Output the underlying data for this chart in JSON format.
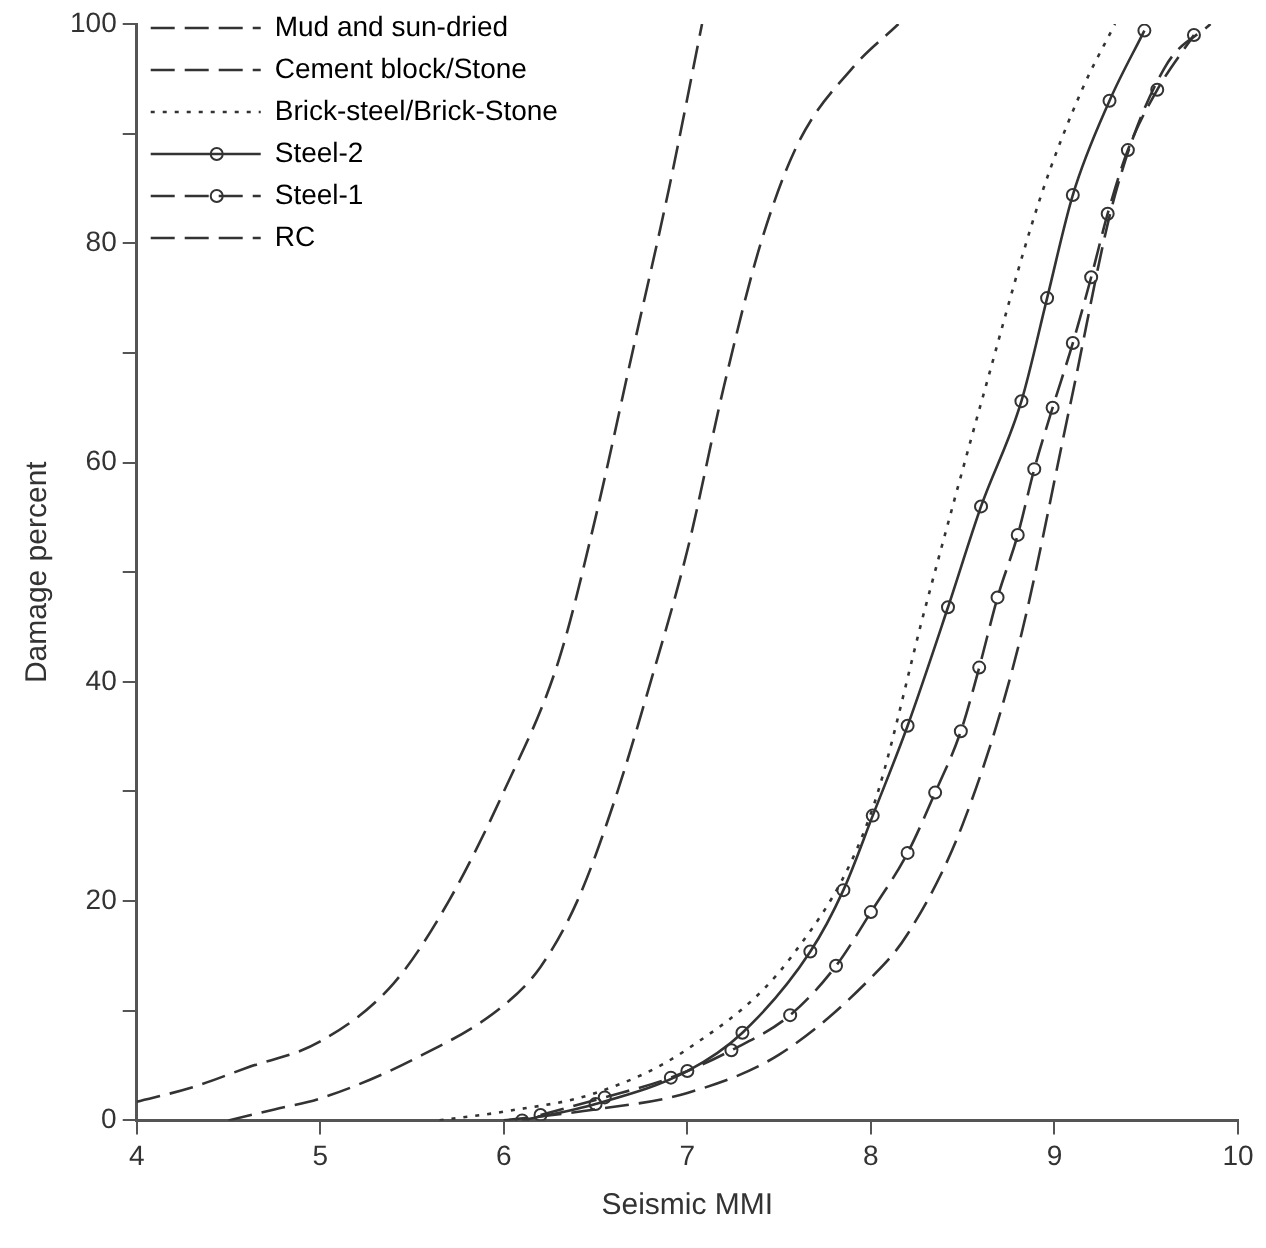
{
  "chart_data": {
    "type": "line",
    "xlabel": "Seismic MMI",
    "ylabel": "Damage percent",
    "xlim": [
      4,
      10
    ],
    "xticks": [
      4,
      5,
      6,
      7,
      8,
      9,
      10
    ],
    "ylim": [
      0,
      100
    ],
    "yticks": [
      0,
      {
        "value": 10,
        "label": null
      },
      20,
      {
        "value": 30,
        "label": null
      },
      40,
      {
        "value": 50,
        "label": null
      },
      60,
      {
        "value": 70,
        "label": null
      },
      80,
      {
        "value": 90,
        "label": null
      },
      100
    ],
    "grid": false,
    "legend": "top left",
    "series": [
      {
        "name": "Mud and sun-dried",
        "color": "#333333",
        "line_style": "dashed",
        "marker": "none",
        "x": [
          4,
          4.3,
          4.6,
          5,
          5.4,
          5.7,
          6,
          6.3,
          6.5,
          6.7,
          6.9,
          7.08
        ],
        "values": [
          1.7,
          3,
          4.8,
          7.2,
          12.5,
          20,
          30,
          42,
          55,
          70,
          85,
          100
        ]
      },
      {
        "name": "Cement block/Stone",
        "color": "#333333",
        "line_style": "dashed",
        "marker": "none",
        "x": [
          4.5,
          4.75,
          5,
          5.5,
          6,
          6.2,
          6.4,
          6.6,
          6.8,
          7,
          7.2,
          7.4,
          7.6,
          7.9,
          8.15
        ],
        "values": [
          0,
          1,
          2,
          5.5,
          10.5,
          14,
          20,
          29,
          40,
          52,
          67,
          80,
          89,
          96,
          100
        ]
      },
      {
        "name": "Brick-steel/Brick-Stone",
        "color": "#333333",
        "line_style": "dotted",
        "marker": "none",
        "x": [
          5.65,
          6,
          6.5,
          7,
          7.57,
          8,
          8.3,
          8.61,
          8.92,
          9.15,
          9.33
        ],
        "values": [
          0,
          0.8,
          2.5,
          6.5,
          15,
          28,
          47,
          66,
          84,
          94,
          100
        ]
      },
      {
        "name": "Steel-2",
        "color": "#333333",
        "line_style": "solid",
        "marker": "circle",
        "x": [
          6.1,
          6.5,
          7,
          7.3,
          7.67,
          7.85,
          8.01,
          8.2,
          8.42,
          8.6,
          8.82,
          8.96,
          9.1,
          9.3,
          9.49
        ],
        "values": [
          0,
          1.5,
          4.5,
          8,
          15.4,
          21,
          27.8,
          36,
          46.8,
          56,
          65.6,
          75,
          84.4,
          93,
          99.4
        ]
      },
      {
        "name": "Steel-1",
        "color": "#333333",
        "line_style": "dashed",
        "marker": "circle",
        "x": [
          6.2,
          6.55,
          6.91,
          7.24,
          7.56,
          7.81,
          8,
          8.2,
          8.35,
          8.49,
          8.59,
          8.69,
          8.8,
          8.89,
          8.99,
          9.1,
          9.2,
          9.29,
          9.4,
          9.56,
          9.76
        ],
        "values": [
          0.5,
          2.1,
          3.9,
          6.4,
          9.6,
          14.1,
          19,
          24.4,
          29.9,
          35.5,
          41.3,
          47.7,
          53.4,
          59.4,
          65,
          70.9,
          76.9,
          82.7,
          88.5,
          94,
          99
        ]
      },
      {
        "name": "RC",
        "color": "#333333",
        "line_style": "dashed",
        "marker": "none",
        "x": [
          6,
          6.5,
          7,
          7.5,
          8,
          8.2,
          8.5,
          8.8,
          9.09,
          9.33,
          9.6,
          9.85
        ],
        "values": [
          0,
          1,
          2.5,
          6,
          13,
          17,
          27,
          43,
          65.6,
          84.4,
          96,
          100
        ]
      }
    ]
  }
}
